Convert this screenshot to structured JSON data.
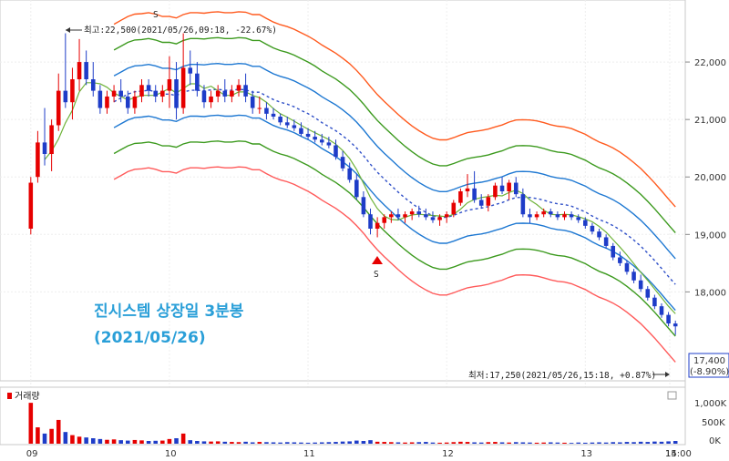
{
  "chart_data": {
    "type": "candlestick",
    "annotation_title": "진시스템 상장일 3분봉",
    "annotation_date": "(2021/05/26)",
    "ylim": [
      16500,
      23000
    ],
    "y_ticks": [
      {
        "value": 18000,
        "label": "18,000"
      },
      {
        "value": 19000,
        "label": "19,000"
      },
      {
        "value": 20000,
        "label": "20,000"
      },
      {
        "value": 21000,
        "label": "21,000"
      },
      {
        "value": 22000,
        "label": "22,000"
      }
    ],
    "x_tick_labels": [
      "09",
      "10",
      "11",
      "12",
      "13",
      "14",
      "15:00"
    ],
    "high_label": "최고:22,500(2021/05/26,09:18, -22.67%)",
    "low_label": "최저:17,250(2021/05/26,15:18, +0.87%)",
    "current_price_label": "17,400",
    "current_change_label": "(-8.90%)",
    "s_markers": [
      "S",
      "S"
    ],
    "volume_title": "거래량",
    "volume_ticks": [
      "1,000K",
      "500K",
      "0K"
    ],
    "ohlc": [
      [
        19100,
        20000,
        19000,
        19900
      ],
      [
        20000,
        20800,
        19900,
        20600
      ],
      [
        20600,
        21200,
        20200,
        20400
      ],
      [
        20400,
        21000,
        20100,
        20900
      ],
      [
        20900,
        21800,
        20800,
        21500
      ],
      [
        21500,
        22500,
        21200,
        21300
      ],
      [
        21300,
        21900,
        21000,
        21700
      ],
      [
        21700,
        22400,
        21500,
        22000
      ],
      [
        22000,
        22200,
        21600,
        21700
      ],
      [
        21700,
        22000,
        21400,
        21500
      ],
      [
        21500,
        21600,
        21100,
        21200
      ],
      [
        21200,
        21500,
        21100,
        21400
      ],
      [
        21400,
        21600,
        21300,
        21500
      ],
      [
        21500,
        21700,
        21300,
        21400
      ],
      [
        21400,
        21500,
        21100,
        21200
      ],
      [
        21200,
        21500,
        21100,
        21400
      ],
      [
        21400,
        21700,
        21300,
        21600
      ],
      [
        21600,
        21700,
        21400,
        21500
      ],
      [
        21500,
        21600,
        21300,
        21400
      ],
      [
        21400,
        21600,
        21300,
        21500
      ],
      [
        21500,
        22100,
        21200,
        21700
      ],
      [
        21700,
        22000,
        21000,
        21200
      ],
      [
        21200,
        22500,
        21100,
        21900
      ],
      [
        21900,
        22200,
        21600,
        21800
      ],
      [
        21800,
        22000,
        21400,
        21500
      ],
      [
        21500,
        21600,
        21200,
        21300
      ],
      [
        21300,
        21500,
        21200,
        21400
      ],
      [
        21400,
        21600,
        21300,
        21500
      ],
      [
        21500,
        21700,
        21300,
        21400
      ],
      [
        21400,
        21600,
        21300,
        21500
      ],
      [
        21500,
        21700,
        21400,
        21600
      ],
      [
        21600,
        21800,
        21300,
        21400
      ],
      [
        21400,
        21500,
        21100,
        21200
      ],
      [
        21200,
        21400,
        21100,
        21200
      ],
      [
        21200,
        21300,
        21000,
        21100
      ],
      [
        21100,
        21200,
        21000,
        21050
      ],
      [
        21050,
        21100,
        20900,
        20950
      ],
      [
        20950,
        21050,
        20850,
        20900
      ],
      [
        20900,
        21000,
        20800,
        20850
      ],
      [
        20850,
        20950,
        20700,
        20750
      ],
      [
        20750,
        20850,
        20650,
        20700
      ],
      [
        20700,
        20800,
        20600,
        20650
      ],
      [
        20650,
        20750,
        20550,
        20600
      ],
      [
        20600,
        20700,
        20500,
        20550
      ],
      [
        20550,
        20650,
        20300,
        20350
      ],
      [
        20350,
        20450,
        20100,
        20150
      ],
      [
        20150,
        20250,
        19900,
        19950
      ],
      [
        19950,
        20050,
        19600,
        19650
      ],
      [
        19650,
        19750,
        19300,
        19350
      ],
      [
        19350,
        19450,
        19000,
        19100
      ],
      [
        19100,
        19300,
        18950,
        19200
      ],
      [
        19200,
        19350,
        19100,
        19300
      ],
      [
        19300,
        19400,
        19200,
        19350
      ],
      [
        19350,
        19450,
        19250,
        19300
      ],
      [
        19300,
        19400,
        19200,
        19350
      ],
      [
        19350,
        19450,
        19250,
        19400
      ],
      [
        19400,
        19500,
        19300,
        19350
      ],
      [
        19350,
        19450,
        19250,
        19300
      ],
      [
        19300,
        19400,
        19200,
        19250
      ],
      [
        19250,
        19350,
        19150,
        19300
      ],
      [
        19300,
        19400,
        19200,
        19350
      ],
      [
        19350,
        19600,
        19300,
        19550
      ],
      [
        19550,
        19800,
        19500,
        19750
      ],
      [
        19750,
        20050,
        19650,
        19800
      ],
      [
        19800,
        20100,
        19550,
        19600
      ],
      [
        19600,
        19700,
        19450,
        19500
      ],
      [
        19500,
        19700,
        19400,
        19650
      ],
      [
        19650,
        19900,
        19600,
        19850
      ],
      [
        19850,
        20000,
        19700,
        19750
      ],
      [
        19750,
        19950,
        19600,
        19900
      ],
      [
        19900,
        20000,
        19650,
        19700
      ],
      [
        19700,
        19800,
        19300,
        19350
      ],
      [
        19350,
        19450,
        19200,
        19300
      ],
      [
        19300,
        19400,
        19250,
        19350
      ],
      [
        19350,
        19450,
        19300,
        19400
      ],
      [
        19400,
        19450,
        19300,
        19350
      ],
      [
        19350,
        19400,
        19250,
        19300
      ],
      [
        19300,
        19400,
        19250,
        19350
      ],
      [
        19350,
        19400,
        19250,
        19300
      ],
      [
        19300,
        19350,
        19200,
        19250
      ],
      [
        19250,
        19300,
        19100,
        19150
      ],
      [
        19150,
        19200,
        19000,
        19050
      ],
      [
        19050,
        19100,
        18900,
        18950
      ],
      [
        18950,
        19000,
        18750,
        18800
      ],
      [
        18800,
        18850,
        18550,
        18600
      ],
      [
        18600,
        18700,
        18450,
        18500
      ],
      [
        18500,
        18550,
        18300,
        18350
      ],
      [
        18350,
        18400,
        18150,
        18200
      ],
      [
        18200,
        18300,
        18000,
        18050
      ],
      [
        18050,
        18100,
        17850,
        17900
      ],
      [
        17900,
        17950,
        17700,
        17750
      ],
      [
        17750,
        17800,
        17550,
        17600
      ],
      [
        17600,
        17650,
        17400,
        17450
      ],
      [
        17450,
        17500,
        17250,
        17400
      ]
    ],
    "volume_k": [
      1050,
      420,
      260,
      380,
      610,
      300,
      220,
      180,
      160,
      140,
      120,
      100,
      110,
      90,
      80,
      95,
      85,
      70,
      75,
      80,
      120,
      140,
      260,
      90,
      70,
      60,
      55,
      60,
      50,
      45,
      40,
      50,
      35,
      45,
      40,
      35,
      30,
      40,
      35,
      30,
      25,
      30,
      35,
      40,
      45,
      55,
      60,
      80,
      70,
      90,
      50,
      45,
      40,
      35,
      30,
      35,
      40,
      45,
      30,
      25,
      30,
      40,
      50,
      45,
      35,
      30,
      40,
      45,
      35,
      30,
      40,
      35,
      30,
      25,
      30,
      35,
      30,
      25,
      20,
      30,
      25,
      30,
      35,
      30,
      40,
      35,
      45,
      40,
      50,
      45,
      55,
      50,
      60,
      70
    ],
    "colors": {
      "up": "#e60000",
      "down": "#1e3cc8",
      "band_outer_upper": "#ff5a1e",
      "band_mid_upper": "#3c9a1e",
      "band_inner": "#1e78d2",
      "band_outer_lower": "#ff5a5a",
      "ma_line": "#6fb33a",
      "dotted_line": "#3050c8",
      "title": "#2a9fd8"
    }
  }
}
